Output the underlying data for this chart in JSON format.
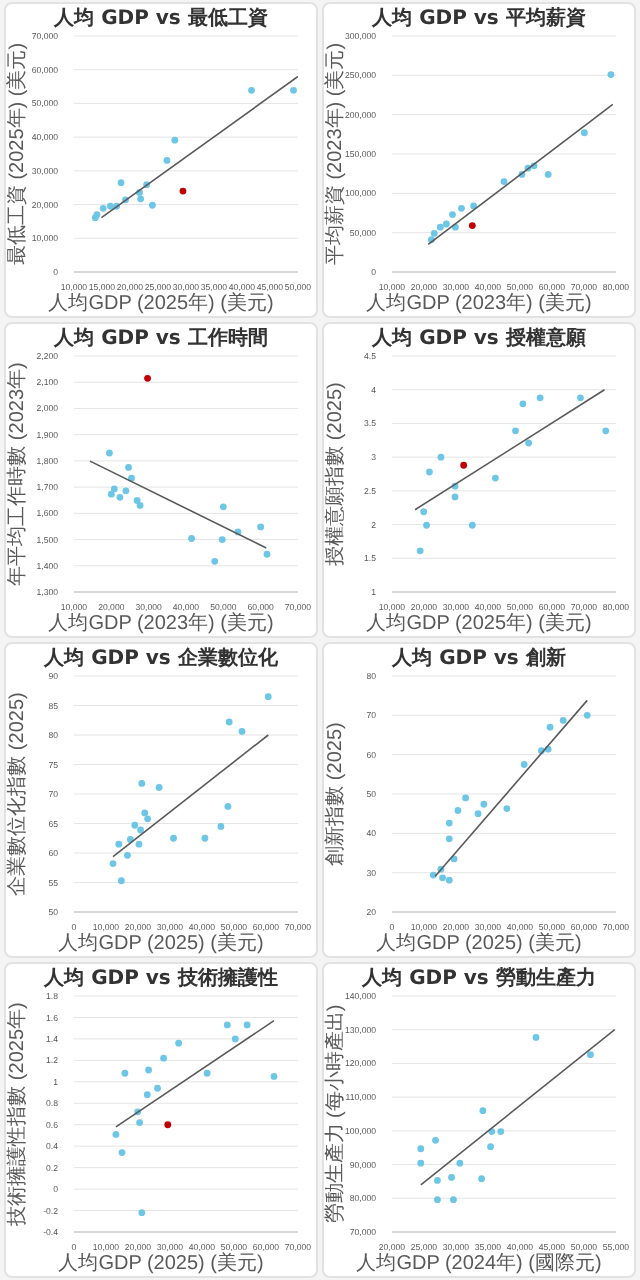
{
  "chart_data": [
    {
      "type": "scatter",
      "title": "人均 GDP vs 最低工資",
      "xlabel": "人均GDP (2025年) (美元)",
      "ylabel": "最低工資 (2025年) (美元)",
      "xlim": [
        10000,
        50000
      ],
      "xticks": [
        {
          "value": 10000,
          "label": "10,000"
        },
        {
          "value": 15000,
          "label": "15,000"
        },
        {
          "value": 20000,
          "label": "20,000"
        },
        {
          "value": 25000,
          "label": "25,000"
        },
        {
          "value": 30000,
          "label": "30,000"
        },
        {
          "value": 35000,
          "label": "35,000"
        },
        {
          "value": 40000,
          "label": "40,000"
        },
        {
          "value": 45000,
          "label": "45,000"
        },
        {
          "value": 50000,
          "label": "50,000"
        }
      ],
      "ylim": [
        0,
        70000
      ],
      "yticks": [
        0,
        {
          "value": 10000,
          "label": "10,000"
        },
        {
          "value": 20000,
          "label": "20,000"
        },
        {
          "value": 30000,
          "label": "30,000"
        },
        {
          "value": 40000,
          "label": "40,000"
        },
        {
          "value": 50000,
          "label": "50,000"
        },
        {
          "value": 60000,
          "label": "60,000"
        },
        {
          "value": 70000,
          "label": "70,000"
        }
      ],
      "grid": "y",
      "series": [
        {
          "type": "scatter",
          "marker": "circle",
          "x": [
            49200,
            41700,
            28000,
            26600,
            18400,
            22970,
            21700,
            21900,
            24000,
            17600,
            16500,
            15200,
            14100,
            13800,
            19200,
            29460
          ],
          "values": [
            53900,
            53900,
            39100,
            33100,
            26500,
            25900,
            23600,
            21700,
            19800,
            19500,
            19500,
            18900,
            17000,
            16100,
            21400,
            24000
          ],
          "colors": [
            "#6ec6e6",
            "#6ec6e6",
            "#6ec6e6",
            "#6ec6e6",
            "#6ec6e6",
            "#6ec6e6",
            "#6ec6e6",
            "#6ec6e6",
            "#6ec6e6",
            "#6ec6e6",
            "#6ec6e6",
            "#6ec6e6",
            "#6ec6e6",
            "#6ec6e6",
            "#6ec6e6",
            "#c00000"
          ]
        },
        {
          "type": "line",
          "marker": "none",
          "color": "#595959",
          "x": [
            14900,
            50000
          ],
          "values": [
            16100,
            58000
          ]
        }
      ]
    },
    {
      "type": "scatter",
      "title": "人均 GDP vs 平均薪資",
      "xlabel": "人均GDP (2023年) (美元)",
      "ylabel": "平均薪資 (2023年) (美元)",
      "xlim": [
        10000,
        80000
      ],
      "xticks": [
        {
          "value": 10000,
          "label": "10,000"
        },
        {
          "value": 20000,
          "label": "20,000"
        },
        {
          "value": 30000,
          "label": "30,000"
        },
        {
          "value": 40000,
          "label": "40,000"
        },
        {
          "value": 50000,
          "label": "50,000"
        },
        {
          "value": 60000,
          "label": "60,000"
        },
        {
          "value": 70000,
          "label": "70,000"
        },
        {
          "value": 80000,
          "label": "80,000"
        }
      ],
      "ylim": [
        0,
        300000
      ],
      "yticks": [
        0,
        {
          "value": 50000,
          "label": "50,000"
        },
        {
          "value": 100000,
          "label": "100,000"
        },
        {
          "value": 150000,
          "label": "150,000"
        },
        {
          "value": 200000,
          "label": "200,000"
        },
        {
          "value": 250000,
          "label": "250,000"
        },
        {
          "value": 300000,
          "label": "300,000"
        }
      ],
      "grid": "y",
      "series": [
        {
          "type": "scatter",
          "marker": "circle",
          "x": [
            78400,
            70100,
            54400,
            52500,
            50600,
            58800,
            45000,
            35500,
            31700,
            28900,
            27000,
            25100,
            23200,
            29800,
            22300,
            35100
          ],
          "values": [
            251000,
            177000,
            135000,
            132000,
            124000,
            124000,
            115000,
            84000,
            81000,
            73000,
            61000,
            57000,
            49000,
            57000,
            41000,
            59000
          ],
          "colors": [
            "#6ec6e6",
            "#6ec6e6",
            "#6ec6e6",
            "#6ec6e6",
            "#6ec6e6",
            "#6ec6e6",
            "#6ec6e6",
            "#6ec6e6",
            "#6ec6e6",
            "#6ec6e6",
            "#6ec6e6",
            "#6ec6e6",
            "#6ec6e6",
            "#6ec6e6",
            "#6ec6e6",
            "#c00000"
          ]
        },
        {
          "type": "line",
          "marker": "none",
          "color": "#595959",
          "x": [
            21300,
            79000
          ],
          "values": [
            35000,
            213000
          ]
        }
      ]
    },
    {
      "type": "scatter",
      "title": "人均 GDP vs 工作時間",
      "xlabel": "人均GDP (2023年) (美元)",
      "ylabel": "年平均工作時數 (2023年)",
      "xlim": [
        10000,
        70000
      ],
      "xticks": [
        {
          "value": 10000,
          "label": "10,000"
        },
        {
          "value": 20000,
          "label": "20,000"
        },
        {
          "value": 30000,
          "label": "30,000"
        },
        {
          "value": 40000,
          "label": "40,000"
        },
        {
          "value": 50000,
          "label": "50,000"
        },
        {
          "value": 60000,
          "label": "60,000"
        },
        {
          "value": 70000,
          "label": "70,000"
        }
      ],
      "ylim": [
        1300,
        2200
      ],
      "yticks": [
        {
          "value": 1300,
          "label": "1,300"
        },
        {
          "value": 1400,
          "label": "1,400"
        },
        {
          "value": 1500,
          "label": "1,500"
        },
        {
          "value": 1600,
          "label": "1,600"
        },
        {
          "value": 1700,
          "label": "1,700"
        },
        {
          "value": 1800,
          "label": "1,800"
        },
        {
          "value": 1900,
          "label": "1,900"
        },
        {
          "value": 2000,
          "label": "2,000"
        },
        {
          "value": 2100,
          "label": "2,100"
        },
        {
          "value": 2200,
          "label": "2,200"
        }
      ],
      "grid": "y",
      "series": [
        {
          "type": "scatter",
          "marker": "circle",
          "x": [
            19500,
            24600,
            25400,
            20800,
            23900,
            22300,
            26900,
            27700,
            50000,
            41500,
            49700,
            47700,
            53900,
            60000,
            61700,
            20000,
            29700
          ],
          "values": [
            1830,
            1775,
            1734,
            1693,
            1686,
            1661,
            1649,
            1630,
            1625,
            1504,
            1500,
            1417,
            1529,
            1548,
            1444,
            1673,
            2115
          ],
          "colors": [
            "#6ec6e6",
            "#6ec6e6",
            "#6ec6e6",
            "#6ec6e6",
            "#6ec6e6",
            "#6ec6e6",
            "#6ec6e6",
            "#6ec6e6",
            "#6ec6e6",
            "#6ec6e6",
            "#6ec6e6",
            "#6ec6e6",
            "#6ec6e6",
            "#6ec6e6",
            "#6ec6e6",
            "#6ec6e6",
            "#c00000"
          ]
        },
        {
          "type": "line",
          "marker": "none",
          "color": "#595959",
          "x": [
            14300,
            61500
          ],
          "values": [
            1799,
            1468
          ]
        }
      ]
    },
    {
      "type": "scatter",
      "title": "人均 GDP vs 授權意願",
      "xlabel": "人均GDP (2025年) (美元)",
      "ylabel": "授權意願指數 (2025)",
      "xlim": [
        10000,
        80000
      ],
      "xticks": [
        {
          "value": 10000,
          "label": "10,000"
        },
        {
          "value": 20000,
          "label": "20,000"
        },
        {
          "value": 30000,
          "label": "30,000"
        },
        {
          "value": 40000,
          "label": "40,000"
        },
        {
          "value": 50000,
          "label": "50,000"
        },
        {
          "value": 60000,
          "label": "60,000"
        },
        {
          "value": 70000,
          "label": "70,000"
        },
        {
          "value": 80000,
          "label": "80,000"
        }
      ],
      "ylim": [
        1,
        4.5
      ],
      "yticks": [
        1,
        1.5,
        2,
        2.5,
        3,
        3.5,
        4,
        4.5
      ],
      "grid": "y",
      "series": [
        {
          "type": "scatter",
          "marker": "circle",
          "x": [
            68900,
            76800,
            56300,
            50900,
            48600,
            52700,
            42300,
            25300,
            21700,
            29700,
            29700,
            19900,
            20800,
            35100,
            18800,
            32400
          ],
          "values": [
            3.88,
            3.39,
            3.88,
            3.79,
            3.39,
            3.21,
            2.69,
            3.0,
            2.78,
            2.57,
            2.41,
            2.19,
            1.99,
            1.99,
            1.61,
            2.88
          ],
          "colors": [
            "#6ec6e6",
            "#6ec6e6",
            "#6ec6e6",
            "#6ec6e6",
            "#6ec6e6",
            "#6ec6e6",
            "#6ec6e6",
            "#6ec6e6",
            "#6ec6e6",
            "#6ec6e6",
            "#6ec6e6",
            "#6ec6e6",
            "#6ec6e6",
            "#6ec6e6",
            "#6ec6e6",
            "#c00000"
          ]
        },
        {
          "type": "line",
          "marker": "none",
          "color": "#595959",
          "x": [
            17200,
            76400
          ],
          "values": [
            2.22,
            4.0
          ]
        }
      ]
    },
    {
      "type": "scatter",
      "title": "人均 GDP vs 企業數位化",
      "xlabel": "人均GDP (2025) (美元)",
      "ylabel": "企業數位化指數 (2025)",
      "xlim": [
        0,
        70000
      ],
      "xticks": [
        {
          "value": 0,
          "label": "0"
        },
        {
          "value": 10000,
          "label": "10,000"
        },
        {
          "value": 20000,
          "label": "20,000"
        },
        {
          "value": 30000,
          "label": "30,000"
        },
        {
          "value": 40000,
          "label": "40,000"
        },
        {
          "value": 50000,
          "label": "50,000"
        },
        {
          "value": 60000,
          "label": "60,000"
        },
        {
          "value": 70000,
          "label": "70,000"
        }
      ],
      "ylim": [
        50,
        90
      ],
      "yticks": [
        50,
        55,
        60,
        65,
        70,
        75,
        80,
        85,
        90
      ],
      "grid": "y",
      "series": [
        {
          "type": "scatter",
          "marker": "circle",
          "x": [
            60700,
            48500,
            52500,
            21200,
            26600,
            48100,
            22100,
            23000,
            19000,
            20800,
            45900,
            17600,
            14000,
            20300,
            31100,
            40900,
            16700,
            12200,
            14800
          ],
          "values": [
            86.5,
            82.2,
            80.6,
            71.8,
            71.1,
            67.9,
            66.8,
            65.8,
            64.7,
            63.9,
            64.5,
            62.3,
            61.5,
            61.5,
            62.5,
            62.5,
            59.6,
            58.2,
            55.3
          ],
          "colors": [
            "#6ec6e6",
            "#6ec6e6",
            "#6ec6e6",
            "#6ec6e6",
            "#6ec6e6",
            "#6ec6e6",
            "#6ec6e6",
            "#6ec6e6",
            "#6ec6e6",
            "#6ec6e6",
            "#6ec6e6",
            "#6ec6e6",
            "#6ec6e6",
            "#6ec6e6",
            "#6ec6e6",
            "#6ec6e6",
            "#6ec6e6",
            "#6ec6e6",
            "#6ec6e6"
          ]
        },
        {
          "type": "line",
          "marker": "none",
          "color": "#595959",
          "x": [
            12200,
            60700
          ],
          "values": [
            59.4,
            80.0
          ]
        }
      ]
    },
    {
      "type": "scatter",
      "title": "人均 GDP vs 創新",
      "xlabel": "人均GDP (2025) (美元)",
      "ylabel": "創新指數 (2025)",
      "xlim": [
        0,
        70000
      ],
      "xticks": [
        {
          "value": 0,
          "label": "0"
        },
        {
          "value": 10000,
          "label": "10,000"
        },
        {
          "value": 20000,
          "label": "20,000"
        },
        {
          "value": 30000,
          "label": "30,000"
        },
        {
          "value": 40000,
          "label": "40,000"
        },
        {
          "value": 50000,
          "label": "50,000"
        },
        {
          "value": 60000,
          "label": "60,000"
        },
        {
          "value": 70000,
          "label": "70,000"
        }
      ],
      "ylim": [
        20,
        80
      ],
      "yticks": [
        20,
        30,
        40,
        50,
        60,
        70,
        80
      ],
      "grid": "y",
      "series": [
        {
          "type": "scatter",
          "marker": "circle",
          "x": [
            61000,
            53500,
            49400,
            48800,
            46700,
            41300,
            23000,
            28700,
            20600,
            26900,
            35900,
            17900,
            17900,
            19400,
            15300,
            15800,
            17900,
            12900
          ],
          "values": [
            70,
            68.7,
            67.0,
            61.4,
            61.0,
            57.5,
            49.0,
            47.4,
            45.8,
            45.0,
            46.3,
            42.6,
            38.6,
            33.5,
            30.9,
            28.7,
            28.1,
            29.4
          ],
          "colors": [
            "#6ec6e6",
            "#6ec6e6",
            "#6ec6e6",
            "#6ec6e6",
            "#6ec6e6",
            "#6ec6e6",
            "#6ec6e6",
            "#6ec6e6",
            "#6ec6e6",
            "#6ec6e6",
            "#6ec6e6",
            "#6ec6e6",
            "#6ec6e6",
            "#6ec6e6",
            "#6ec6e6",
            "#6ec6e6",
            "#6ec6e6",
            "#6ec6e6"
          ]
        },
        {
          "type": "line",
          "marker": "none",
          "color": "#595959",
          "x": [
            13500,
            61000
          ],
          "values": [
            29.1,
            73.8
          ]
        }
      ]
    },
    {
      "type": "scatter",
      "title": "人均 GDP vs 技術擁護性",
      "xlabel": "人均GDP (2025) (美元)",
      "ylabel": "技術擁護性指數 (2025年)",
      "xlim": [
        0,
        70000
      ],
      "xticks": [
        {
          "value": 0,
          "label": "0"
        },
        {
          "value": 10000,
          "label": "10,000"
        },
        {
          "value": 20000,
          "label": "20,000"
        },
        {
          "value": 30000,
          "label": "30,000"
        },
        {
          "value": 40000,
          "label": "40,000"
        },
        {
          "value": 50000,
          "label": "50,000"
        },
        {
          "value": 60000,
          "label": "60,000"
        },
        {
          "value": 70000,
          "label": "70,000"
        }
      ],
      "ylim": [
        -0.4,
        1.8
      ],
      "yticks": [
        -0.4,
        -0.2,
        0,
        0.2,
        0.4,
        0.6,
        0.8,
        1,
        1.2,
        1.4,
        1.6,
        1.8
      ],
      "grid": "y",
      "series": [
        {
          "type": "scatter",
          "marker": "circle",
          "x": [
            54100,
            47900,
            50400,
            32700,
            28000,
            23300,
            15900,
            41600,
            62500,
            26100,
            22900,
            19900,
            20500,
            13100,
            15000,
            21200,
            29300
          ],
          "values": [
            1.53,
            1.53,
            1.4,
            1.36,
            1.22,
            1.11,
            1.08,
            1.08,
            1.05,
            0.94,
            0.88,
            0.72,
            0.62,
            0.51,
            0.34,
            -0.22,
            0.6
          ],
          "colors": [
            "#6ec6e6",
            "#6ec6e6",
            "#6ec6e6",
            "#6ec6e6",
            "#6ec6e6",
            "#6ec6e6",
            "#6ec6e6",
            "#6ec6e6",
            "#6ec6e6",
            "#6ec6e6",
            "#6ec6e6",
            "#6ec6e6",
            "#6ec6e6",
            "#6ec6e6",
            "#6ec6e6",
            "#6ec6e6",
            "#c00000"
          ]
        },
        {
          "type": "line",
          "marker": "none",
          "color": "#595959",
          "x": [
            13100,
            62500
          ],
          "values": [
            0.58,
            1.57
          ]
        }
      ]
    },
    {
      "type": "scatter",
      "title": "人均 GDP vs 勞動生產力",
      "xlabel": "人均GDP (2024年) (國際元)",
      "ylabel": "勞動生產力 (每小時產出)",
      "xlim": [
        20000,
        55000
      ],
      "xticks": [
        {
          "value": 20000,
          "label": "20,000"
        },
        {
          "value": 25000,
          "label": "25,000"
        },
        {
          "value": 30000,
          "label": "30,000"
        },
        {
          "value": 35000,
          "label": "35,000"
        },
        {
          "value": 40000,
          "label": "40,000"
        },
        {
          "value": 45000,
          "label": "45,000"
        },
        {
          "value": 50000,
          "label": "50,000"
        },
        {
          "value": 55000,
          "label": "55,000"
        }
      ],
      "ylim": [
        70000,
        140000
      ],
      "yticks": [
        {
          "value": 70000,
          "label": "70,000"
        },
        {
          "value": 80000,
          "label": "80,000"
        },
        {
          "value": 90000,
          "label": "90,000"
        },
        {
          "value": 100000,
          "label": "100,000"
        },
        {
          "value": 110000,
          "label": "110,000"
        },
        {
          "value": 120000,
          "label": "120,000"
        },
        {
          "value": 130000,
          "label": "130,000"
        },
        {
          "value": 140000,
          "label": "140,000"
        }
      ],
      "grid": "y",
      "series": [
        {
          "type": "scatter",
          "marker": "circle",
          "x": [
            42500,
            51000,
            34200,
            35600,
            37000,
            35400,
            26800,
            24500,
            24500,
            30600,
            29300,
            34000,
            27100,
            27100,
            29600
          ],
          "values": [
            127700,
            122600,
            106000,
            99800,
            99800,
            95300,
            97200,
            94700,
            90400,
            90400,
            86200,
            85800,
            85300,
            79600,
            79600
          ],
          "colors": [
            "#6ec6e6",
            "#6ec6e6",
            "#6ec6e6",
            "#6ec6e6",
            "#6ec6e6",
            "#6ec6e6",
            "#6ec6e6",
            "#6ec6e6",
            "#6ec6e6",
            "#6ec6e6",
            "#6ec6e6",
            "#6ec6e6",
            "#6ec6e6",
            "#6ec6e6",
            "#6ec6e6"
          ]
        },
        {
          "type": "line",
          "marker": "none",
          "color": "#595959",
          "x": [
            24500,
            54800
          ],
          "values": [
            84000,
            130000
          ]
        }
      ]
    }
  ]
}
